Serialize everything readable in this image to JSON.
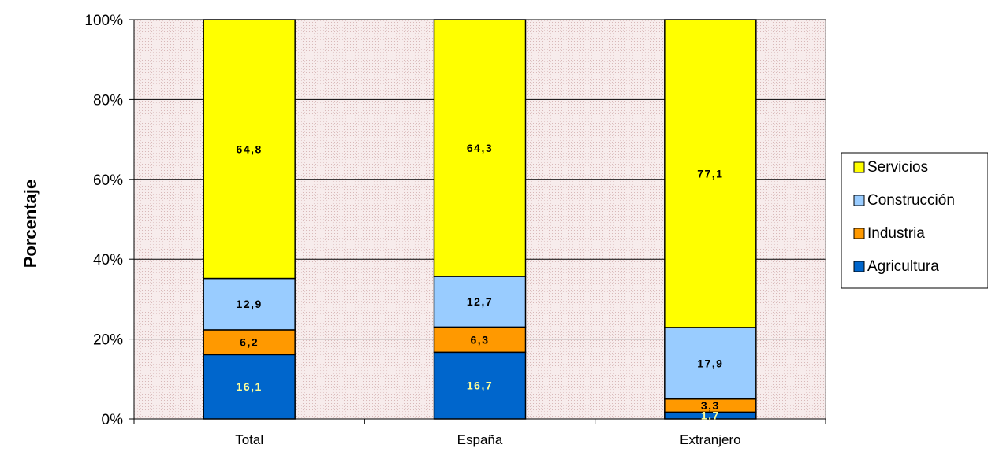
{
  "chart_data": {
    "type": "bar",
    "stacked": true,
    "percent": true,
    "categories": [
      "Total",
      "España",
      "Extranjero"
    ],
    "series": [
      {
        "name": "Agricultura",
        "color": "#0066CC",
        "label_color": "#FFFF99",
        "values": [
          16.1,
          16.7,
          1.7
        ],
        "labels": [
          "16,1",
          "16,7",
          "1,7"
        ]
      },
      {
        "name": "Industria",
        "color": "#FF9900",
        "label_color": "#000000",
        "values": [
          6.2,
          6.3,
          3.3
        ],
        "labels": [
          "6,2",
          "6,3",
          "3,3"
        ]
      },
      {
        "name": "Construcción",
        "color": "#99CCFF",
        "label_color": "#000000",
        "values": [
          12.9,
          12.7,
          17.9
        ],
        "labels": [
          "12,9",
          "12,7",
          "17,9"
        ]
      },
      {
        "name": "Servicios",
        "color": "#FFFF00",
        "label_color": "#000000",
        "values": [
          64.8,
          64.3,
          77.1
        ],
        "labels": [
          "64,8",
          "64,3",
          "77,1"
        ]
      }
    ],
    "ylabel": "Porcentaje",
    "xlabel": "",
    "ylim": [
      0,
      100
    ],
    "yticks": [
      "0%",
      "20%",
      "40%",
      "60%",
      "80%",
      "100%"
    ],
    "grid": true,
    "legend_position": "right",
    "legend_order": [
      "Servicios",
      "Construcción",
      "Industria",
      "Agricultura"
    ]
  }
}
